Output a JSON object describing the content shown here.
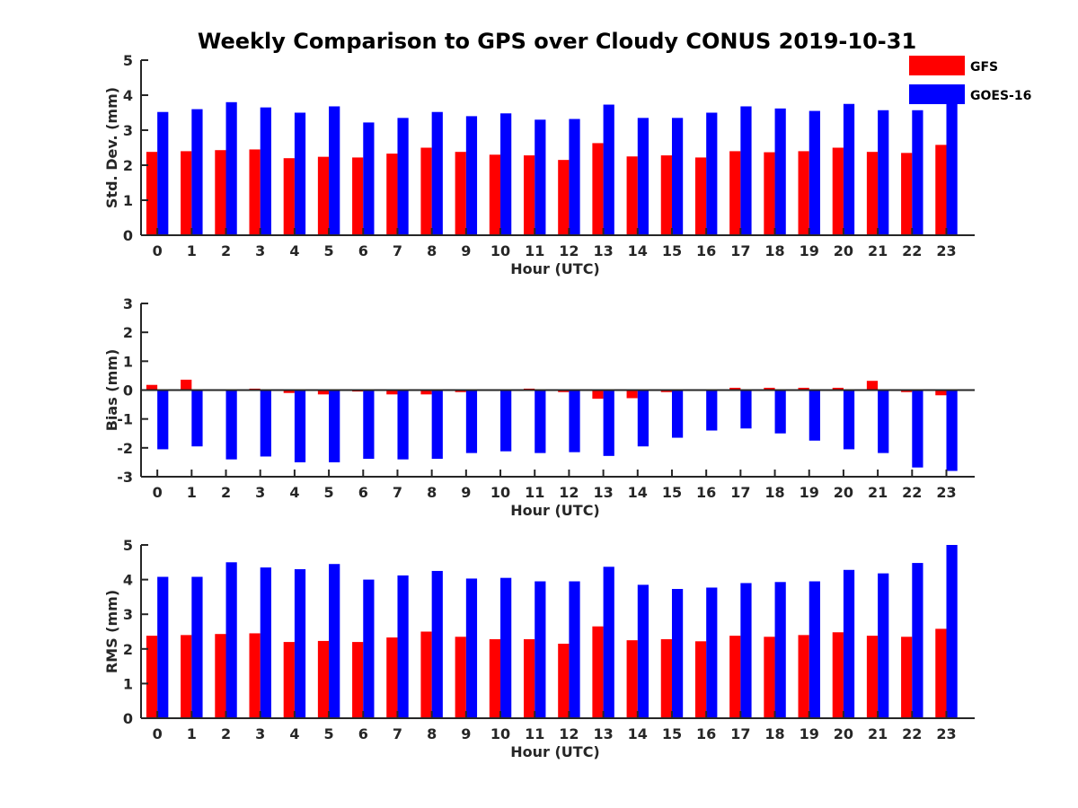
{
  "chart_data": {
    "title": "Weekly Comparison to GPS over Cloudy CONUS 2019-10-31",
    "legend": {
      "placement": "top-right",
      "entries": [
        {
          "name": "GFS",
          "color": "#ff0000"
        },
        {
          "name": "GOES-16",
          "color": "#0000ff"
        }
      ]
    },
    "categories": [
      "0",
      "1",
      "2",
      "3",
      "4",
      "5",
      "6",
      "7",
      "8",
      "9",
      "10",
      "11",
      "12",
      "13",
      "14",
      "15",
      "16",
      "17",
      "18",
      "19",
      "20",
      "21",
      "22",
      "23"
    ],
    "panels": [
      {
        "type": "bar",
        "xlabel": "Hour (UTC)",
        "ylabel": "Std. Dev. (mm)",
        "ylim": [
          0,
          5
        ],
        "yticks": [
          0,
          1,
          2,
          3,
          4,
          5
        ],
        "grid": false,
        "series": [
          {
            "name": "GFS",
            "color": "#ff0000",
            "values": [
              2.38,
              2.4,
              2.43,
              2.45,
              2.2,
              2.24,
              2.22,
              2.33,
              2.5,
              2.38,
              2.3,
              2.28,
              2.15,
              2.63,
              2.25,
              2.28,
              2.22,
              2.4,
              2.37,
              2.4,
              2.5,
              2.38,
              2.35,
              2.58
            ]
          },
          {
            "name": "GOES-16",
            "color": "#0000ff",
            "values": [
              3.52,
              3.6,
              3.8,
              3.65,
              3.5,
              3.68,
              3.22,
              3.35,
              3.52,
              3.4,
              3.48,
              3.3,
              3.32,
              3.73,
              3.35,
              3.35,
              3.5,
              3.68,
              3.62,
              3.55,
              3.75,
              3.57,
              3.57,
              3.83
            ]
          }
        ]
      },
      {
        "type": "bar",
        "xlabel": "Hour (UTC)",
        "ylabel": "Bias (mm)",
        "ylim": [
          -3,
          3
        ],
        "yticks": [
          -3,
          -2,
          -1,
          0,
          1,
          2,
          3
        ],
        "grid": false,
        "zero_line": true,
        "series": [
          {
            "name": "GFS",
            "color": "#ff0000",
            "values": [
              0.18,
              0.36,
              0.0,
              0.05,
              -0.1,
              -0.15,
              -0.05,
              -0.15,
              -0.15,
              -0.07,
              0.03,
              0.05,
              -0.07,
              -0.3,
              -0.28,
              -0.07,
              0.0,
              0.08,
              0.08,
              0.08,
              0.08,
              0.32,
              -0.07,
              -0.18
            ]
          },
          {
            "name": "GOES-16",
            "color": "#0000ff",
            "values": [
              -2.05,
              -1.95,
              -2.4,
              -2.3,
              -2.5,
              -2.5,
              -2.38,
              -2.4,
              -2.38,
              -2.18,
              -2.12,
              -2.18,
              -2.15,
              -2.28,
              -1.95,
              -1.65,
              -1.4,
              -1.33,
              -1.5,
              -1.75,
              -2.05,
              -2.18,
              -2.68,
              -2.8
            ]
          }
        ]
      },
      {
        "type": "bar",
        "xlabel": "Hour (UTC)",
        "ylabel": "RMS (mm)",
        "ylim": [
          0,
          5
        ],
        "yticks": [
          0,
          1,
          2,
          3,
          4,
          5
        ],
        "grid": false,
        "series": [
          {
            "name": "GFS",
            "color": "#ff0000",
            "values": [
              2.38,
              2.4,
              2.43,
              2.45,
              2.2,
              2.23,
              2.2,
              2.33,
              2.5,
              2.35,
              2.28,
              2.28,
              2.15,
              2.65,
              2.25,
              2.28,
              2.22,
              2.38,
              2.35,
              2.4,
              2.48,
              2.38,
              2.35,
              2.58
            ]
          },
          {
            "name": "GOES-16",
            "color": "#0000ff",
            "values": [
              4.08,
              4.08,
              4.5,
              4.35,
              4.3,
              4.45,
              4.0,
              4.12,
              4.25,
              4.03,
              4.05,
              3.95,
              3.95,
              4.37,
              3.85,
              3.73,
              3.77,
              3.9,
              3.93,
              3.95,
              4.28,
              4.18,
              4.48,
              5.0
            ]
          }
        ]
      }
    ]
  }
}
